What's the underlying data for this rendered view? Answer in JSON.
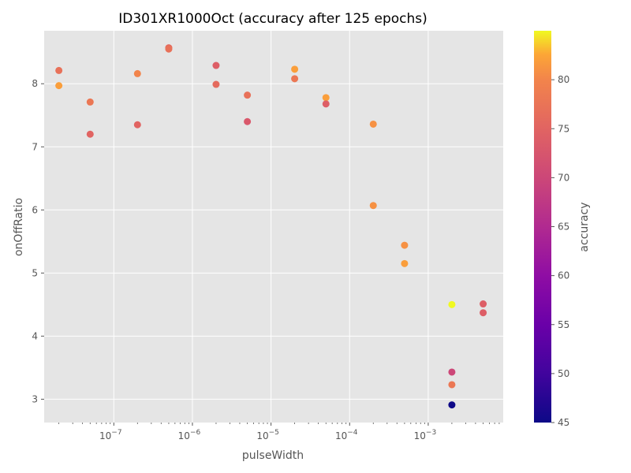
{
  "chart_data": {
    "type": "scatter",
    "title": "ID301XR1000Oct (accuracy after 125 epochs)",
    "xlabel": "pulseWidth",
    "ylabel": "onOffRatio",
    "xscale": "log",
    "xlim": [
      1.3e-08,
      0.009
    ],
    "ylim": [
      2.63,
      8.84
    ],
    "grid": true,
    "x_ticks": [
      {
        "value": 1e-07,
        "base": "10",
        "exp": "−7"
      },
      {
        "value": 1e-06,
        "base": "10",
        "exp": "−6"
      },
      {
        "value": 1e-05,
        "base": "10",
        "exp": "−5"
      },
      {
        "value": 0.0001,
        "base": "10",
        "exp": "−4"
      },
      {
        "value": 0.001,
        "base": "10",
        "exp": "−3"
      }
    ],
    "y_ticks": [
      3,
      4,
      5,
      6,
      7,
      8
    ],
    "colorbar": {
      "label": "accuracy",
      "range": [
        45,
        85
      ],
      "ticks": [
        45,
        50,
        55,
        60,
        65,
        70,
        75,
        80
      ],
      "colormap": "plasma"
    },
    "points": [
      {
        "x": 2e-08,
        "y": 8.21,
        "accuracy": 77
      },
      {
        "x": 2e-08,
        "y": 7.97,
        "accuracy": 82
      },
      {
        "x": 5e-08,
        "y": 7.71,
        "accuracy": 78
      },
      {
        "x": 5e-08,
        "y": 7.2,
        "accuracy": 75
      },
      {
        "x": 2e-07,
        "y": 8.16,
        "accuracy": 80
      },
      {
        "x": 2e-07,
        "y": 7.35,
        "accuracy": 75
      },
      {
        "x": 5e-07,
        "y": 8.57,
        "accuracy": 76
      },
      {
        "x": 5e-07,
        "y": 8.55,
        "accuracy": 77
      },
      {
        "x": 2e-06,
        "y": 8.29,
        "accuracy": 74
      },
      {
        "x": 2e-06,
        "y": 7.99,
        "accuracy": 76
      },
      {
        "x": 5e-06,
        "y": 7.82,
        "accuracy": 77
      },
      {
        "x": 5e-06,
        "y": 7.4,
        "accuracy": 73
      },
      {
        "x": 2e-05,
        "y": 8.23,
        "accuracy": 82
      },
      {
        "x": 2e-05,
        "y": 8.08,
        "accuracy": 78
      },
      {
        "x": 5e-05,
        "y": 7.78,
        "accuracy": 82
      },
      {
        "x": 5e-05,
        "y": 7.68,
        "accuracy": 74
      },
      {
        "x": 0.0002,
        "y": 7.36,
        "accuracy": 81
      },
      {
        "x": 0.0002,
        "y": 6.07,
        "accuracy": 81
      },
      {
        "x": 0.0005,
        "y": 5.44,
        "accuracy": 81
      },
      {
        "x": 0.0005,
        "y": 5.15,
        "accuracy": 82
      },
      {
        "x": 0.002,
        "y": 4.5,
        "accuracy": 85
      },
      {
        "x": 0.002,
        "y": 3.43,
        "accuracy": 70
      },
      {
        "x": 0.002,
        "y": 3.23,
        "accuracy": 78
      },
      {
        "x": 0.002,
        "y": 2.91,
        "accuracy": 45
      },
      {
        "x": 0.005,
        "y": 4.51,
        "accuracy": 74
      },
      {
        "x": 0.005,
        "y": 4.37,
        "accuracy": 74
      }
    ]
  }
}
